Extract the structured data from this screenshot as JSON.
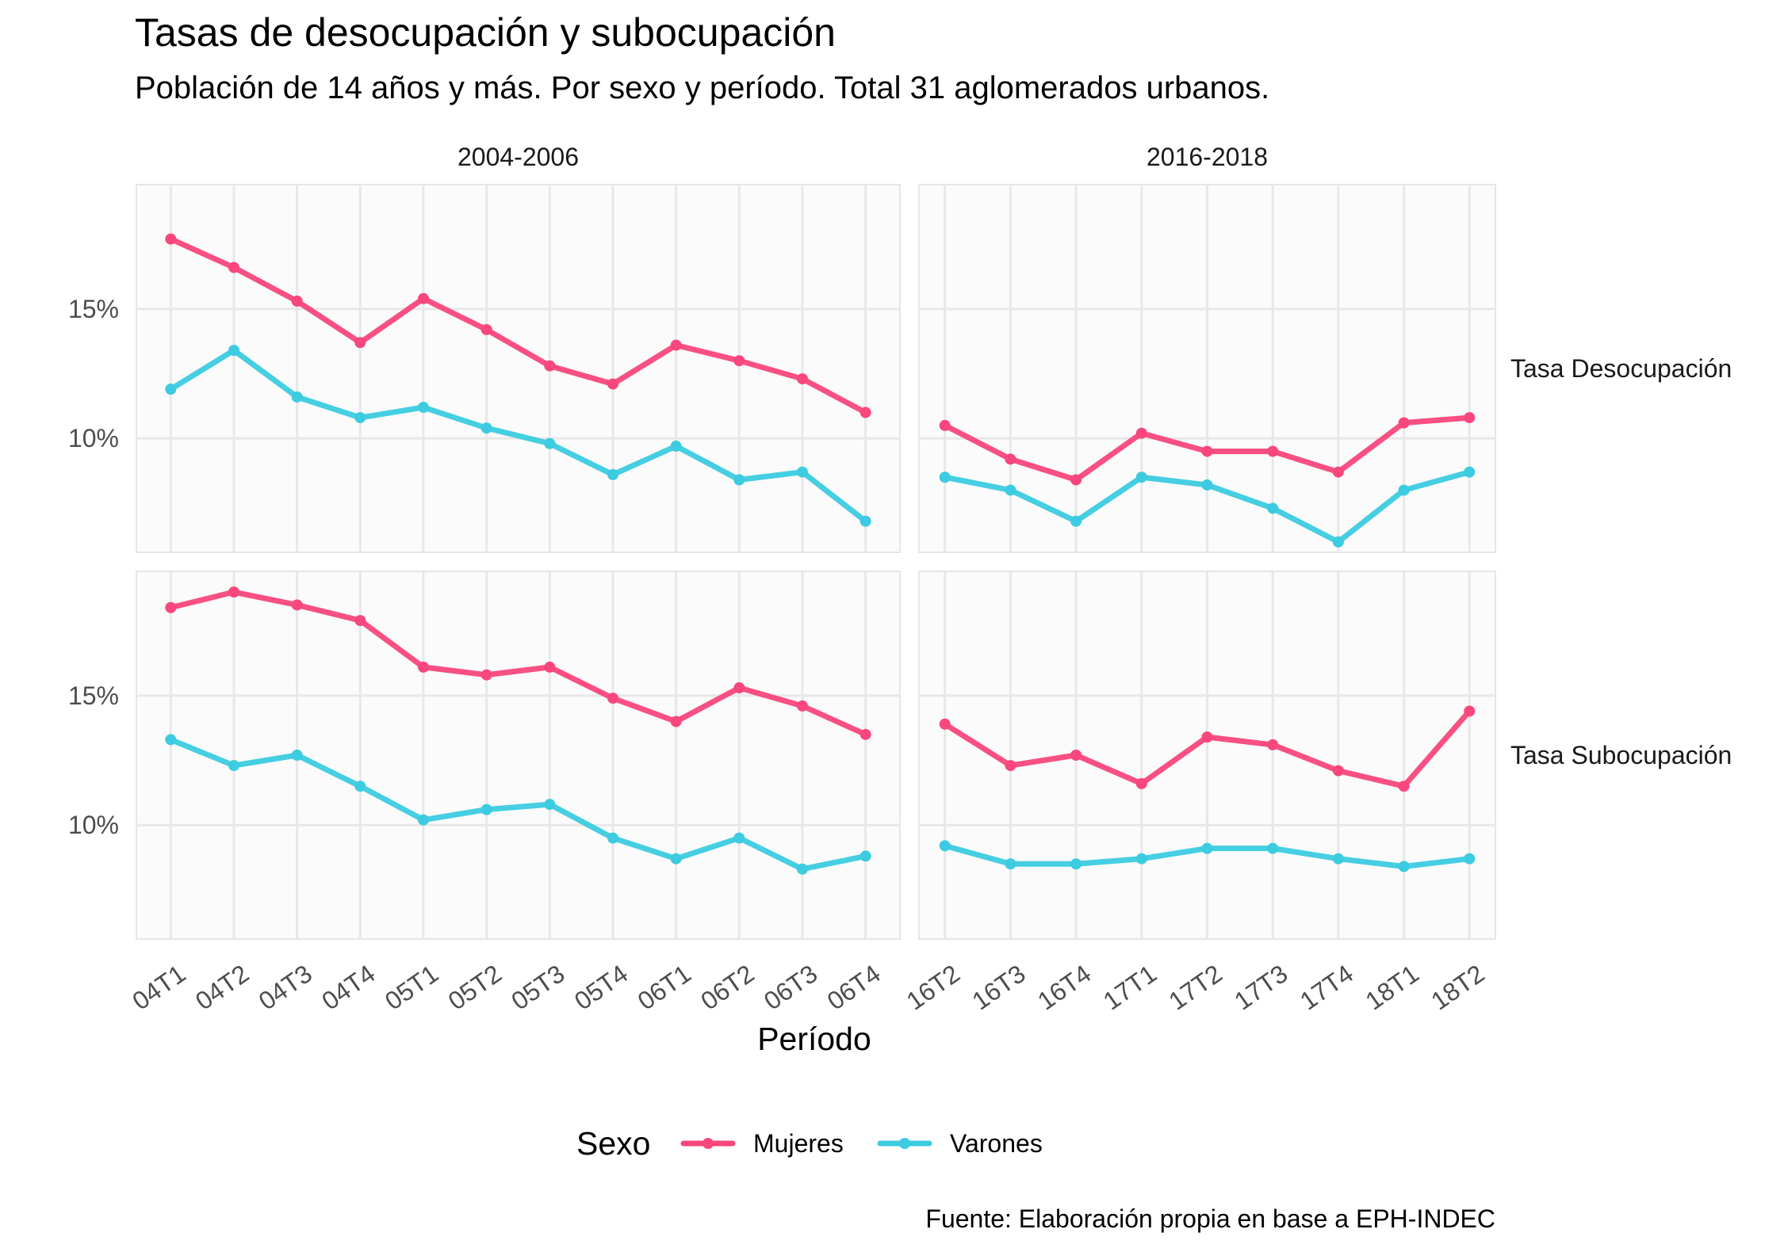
{
  "chart_data": {
    "type": "line",
    "title": "Tasas de desocupación y subocupación",
    "subtitle": "Población de 14 años y más. Por sexo y período. Total 31 aglomerados urbanos.",
    "xlabel": "Período",
    "caption": "Fuente: Elaboración propia en base a EPH-INDEC",
    "legend": {
      "title": "Sexo",
      "position": "bottom"
    },
    "y_ticks": [
      10,
      15
    ],
    "y_tick_labels": [
      "10%",
      "15%"
    ],
    "grid": true,
    "series_colors": {
      "Mujeres": "#f8477c",
      "Varones": "#3ccbe0"
    },
    "facet_columns": [
      {
        "label": "2004-2006",
        "categories": [
          "04T1",
          "04T2",
          "04T3",
          "04T4",
          "05T1",
          "05T2",
          "05T3",
          "05T4",
          "06T1",
          "06T2",
          "06T3",
          "06T4"
        ]
      },
      {
        "label": "2016-2018",
        "categories": [
          "16T2",
          "16T3",
          "16T4",
          "17T1",
          "17T2",
          "17T3",
          "17T4",
          "18T1",
          "18T2"
        ]
      }
    ],
    "facet_rows": [
      {
        "label": "Tasa Desocupación",
        "ylim": [
          5.6,
          19.8
        ]
      },
      {
        "label": "Tasa Subocupación",
        "ylim": [
          5.6,
          19.8
        ]
      }
    ],
    "panels": [
      {
        "row": 0,
        "col": 0,
        "series": [
          {
            "name": "Mujeres",
            "values": [
              17.7,
              16.6,
              15.3,
              13.7,
              15.4,
              14.2,
              12.8,
              12.1,
              13.6,
              13.0,
              12.3,
              11.0
            ]
          },
          {
            "name": "Varones",
            "values": [
              11.9,
              13.4,
              11.6,
              10.8,
              11.2,
              10.4,
              9.8,
              8.6,
              9.7,
              8.4,
              8.7,
              6.8
            ]
          }
        ]
      },
      {
        "row": 0,
        "col": 1,
        "series": [
          {
            "name": "Mujeres",
            "values": [
              10.5,
              9.2,
              8.4,
              10.2,
              9.5,
              9.5,
              8.7,
              10.6,
              10.8
            ]
          },
          {
            "name": "Varones",
            "values": [
              8.5,
              8.0,
              6.8,
              8.5,
              8.2,
              7.3,
              6.0,
              8.0,
              8.7
            ]
          }
        ]
      },
      {
        "row": 1,
        "col": 0,
        "series": [
          {
            "name": "Mujeres",
            "values": [
              18.4,
              19.0,
              18.5,
              17.9,
              16.1,
              15.8,
              16.1,
              14.9,
              14.0,
              15.3,
              14.6,
              13.5
            ]
          },
          {
            "name": "Varones",
            "values": [
              13.3,
              12.3,
              12.7,
              11.5,
              10.2,
              10.6,
              10.8,
              9.5,
              8.7,
              9.5,
              8.3,
              8.8
            ]
          }
        ]
      },
      {
        "row": 1,
        "col": 1,
        "series": [
          {
            "name": "Mujeres",
            "values": [
              13.9,
              12.3,
              12.7,
              11.6,
              13.4,
              13.1,
              12.1,
              11.5,
              14.4
            ]
          },
          {
            "name": "Varones",
            "values": [
              9.2,
              8.5,
              8.5,
              8.7,
              9.1,
              9.1,
              8.7,
              8.4,
              8.7
            ]
          }
        ]
      }
    ]
  }
}
